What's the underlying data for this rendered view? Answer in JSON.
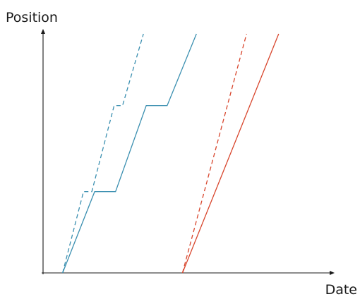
{
  "chart_data": {
    "type": "line",
    "xlabel": "Date",
    "ylabel": "Position",
    "xlim": [
      0,
      100
    ],
    "ylim": [
      0,
      100
    ],
    "grid": false,
    "legend": "none",
    "colors": {
      "blue": "#3a8fb0",
      "red": "#d8452c",
      "axis": "#1a1a1a"
    },
    "series": [
      {
        "color": "blue",
        "style": "solid",
        "points": [
          [
            7,
            0
          ],
          [
            18.5,
            34
          ],
          [
            26,
            34
          ],
          [
            37,
            70
          ],
          [
            44.5,
            70
          ],
          [
            55,
            100
          ]
        ]
      },
      {
        "color": "blue",
        "style": "dashed",
        "points": [
          [
            7,
            0
          ],
          [
            14.5,
            34
          ],
          [
            17.5,
            34
          ],
          [
            25.5,
            70
          ],
          [
            28.5,
            70
          ],
          [
            36,
            100
          ]
        ]
      },
      {
        "color": "red",
        "style": "solid",
        "points": [
          [
            50,
            0
          ],
          [
            84.5,
            100
          ]
        ]
      },
      {
        "color": "red",
        "style": "dashed",
        "points": [
          [
            50,
            0
          ],
          [
            73,
            100
          ]
        ]
      }
    ]
  }
}
